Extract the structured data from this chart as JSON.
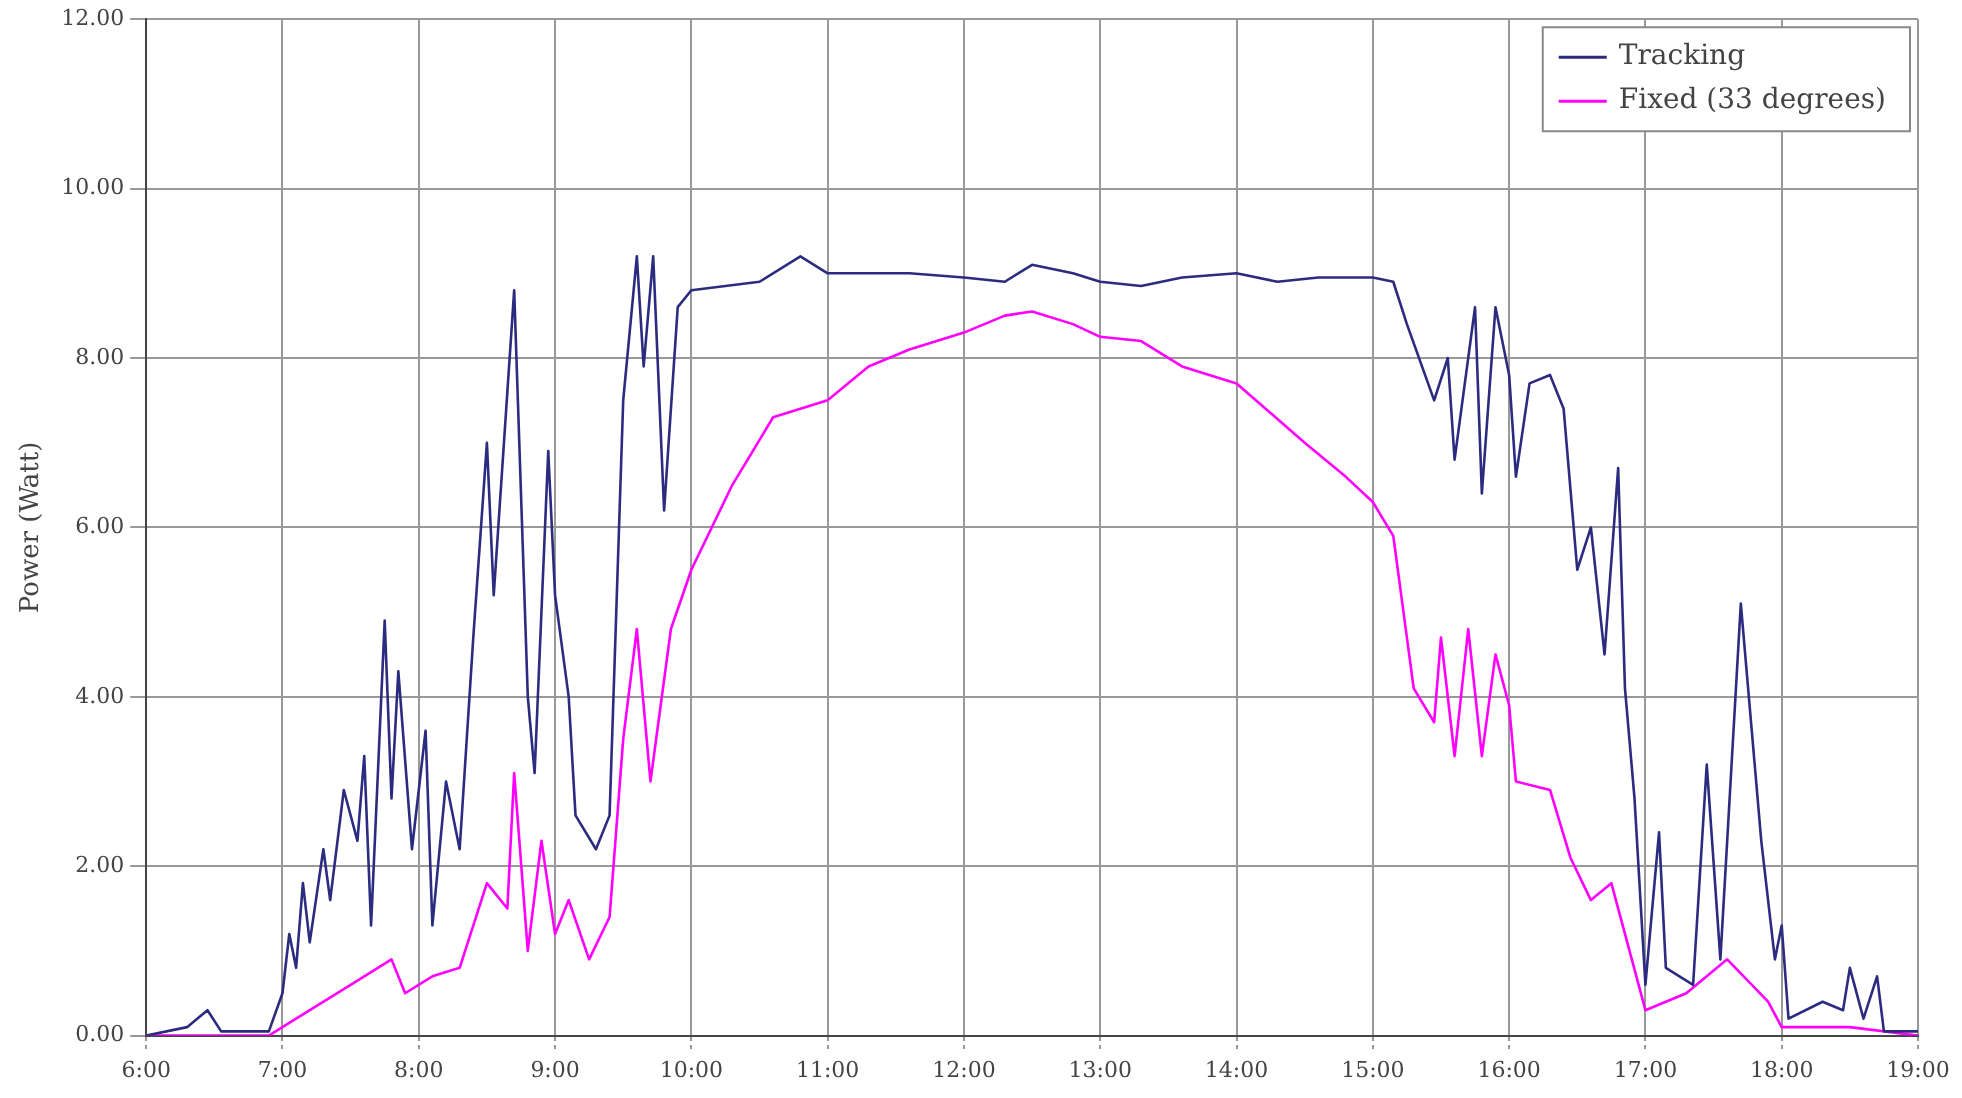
{
  "chart_data": {
    "type": "line",
    "ylabel": "Power (Watt)",
    "legend": "top right",
    "grid": true,
    "marker": "none",
    "line_style": "solid",
    "xlim": [
      6,
      19
    ],
    "xticks": [
      {
        "value": 6,
        "label": "6:00"
      },
      {
        "value": 7,
        "label": "7:00"
      },
      {
        "value": 8,
        "label": "8:00"
      },
      {
        "value": 9,
        "label": "9:00"
      },
      {
        "value": 10,
        "label": "10:00"
      },
      {
        "value": 11,
        "label": "11:00"
      },
      {
        "value": 12,
        "label": "12:00"
      },
      {
        "value": 13,
        "label": "13:00"
      },
      {
        "value": 14,
        "label": "14:00"
      },
      {
        "value": 15,
        "label": "15:00"
      },
      {
        "value": 16,
        "label": "16:00"
      },
      {
        "value": 17,
        "label": "17:00"
      },
      {
        "value": 18,
        "label": "18:00"
      },
      {
        "value": 19,
        "label": "19:00"
      }
    ],
    "ylim": [
      0,
      12
    ],
    "yticks": [
      {
        "value": 0,
        "label": "0.00"
      },
      {
        "value": 2,
        "label": "2.00"
      },
      {
        "value": 4,
        "label": "4.00"
      },
      {
        "value": 6,
        "label": "6.00"
      },
      {
        "value": 8,
        "label": "8.00"
      },
      {
        "value": 10,
        "label": "10.00"
      },
      {
        "value": 12,
        "label": "12.00"
      }
    ],
    "series": [
      {
        "name": "Tracking",
        "color": "#2b2b80",
        "x": [
          6.0,
          6.3,
          6.45,
          6.55,
          6.9,
          7.0,
          7.05,
          7.1,
          7.15,
          7.2,
          7.3,
          7.35,
          7.45,
          7.55,
          7.6,
          7.65,
          7.75,
          7.8,
          7.85,
          7.95,
          8.05,
          8.1,
          8.2,
          8.3,
          8.4,
          8.5,
          8.55,
          8.7,
          8.75,
          8.8,
          8.85,
          8.95,
          9.0,
          9.1,
          9.15,
          9.3,
          9.4,
          9.5,
          9.6,
          9.65,
          9.72,
          9.8,
          9.9,
          10.0,
          10.5,
          10.8,
          11.0,
          11.3,
          11.6,
          12.0,
          12.3,
          12.5,
          12.8,
          13.0,
          13.3,
          13.6,
          14.0,
          14.3,
          14.6,
          15.0,
          15.15,
          15.25,
          15.45,
          15.55,
          15.6,
          15.75,
          15.8,
          15.9,
          16.0,
          16.05,
          16.15,
          16.3,
          16.4,
          16.5,
          16.6,
          16.7,
          16.8,
          16.85,
          16.92,
          17.0,
          17.1,
          17.15,
          17.35,
          17.45,
          17.55,
          17.7,
          17.85,
          17.95,
          18.0,
          18.05,
          18.3,
          18.45,
          18.5,
          18.6,
          18.7,
          18.75,
          19.0
        ],
        "values": [
          0,
          0.1,
          0.3,
          0.05,
          0.05,
          0.5,
          1.2,
          0.8,
          1.8,
          1.1,
          2.2,
          1.6,
          2.9,
          2.3,
          3.3,
          1.3,
          4.9,
          2.8,
          4.3,
          2.2,
          3.6,
          1.3,
          3.0,
          2.2,
          4.7,
          7.0,
          5.2,
          8.8,
          6.4,
          4.0,
          3.1,
          6.9,
          5.2,
          4.0,
          2.6,
          2.2,
          2.6,
          7.5,
          9.2,
          7.9,
          9.2,
          6.2,
          8.6,
          8.8,
          8.9,
          9.2,
          9.0,
          9.0,
          9.0,
          8.95,
          8.9,
          9.1,
          9.0,
          8.9,
          8.85,
          8.95,
          9.0,
          8.9,
          8.95,
          8.95,
          8.9,
          8.4,
          7.5,
          8.0,
          6.8,
          8.6,
          6.4,
          8.6,
          7.8,
          6.6,
          7.7,
          7.8,
          7.4,
          5.5,
          6.0,
          4.5,
          6.7,
          4.1,
          2.8,
          0.6,
          2.4,
          0.8,
          0.6,
          3.2,
          0.9,
          5.1,
          2.3,
          0.9,
          1.3,
          0.2,
          0.4,
          0.3,
          0.8,
          0.2,
          0.7,
          0.05,
          0.05
        ]
      },
      {
        "name": "Fixed (33 degrees)",
        "color": "#ff00ff",
        "x": [
          6.0,
          6.9,
          7.1,
          7.5,
          7.8,
          7.9,
          8.1,
          8.3,
          8.5,
          8.65,
          8.7,
          8.8,
          8.9,
          9.0,
          9.1,
          9.25,
          9.4,
          9.5,
          9.6,
          9.7,
          9.85,
          10.0,
          10.3,
          10.6,
          11.0,
          11.3,
          11.6,
          12.0,
          12.3,
          12.5,
          12.8,
          13.0,
          13.3,
          13.6,
          14.0,
          14.5,
          14.8,
          15.0,
          15.15,
          15.3,
          15.45,
          15.5,
          15.6,
          15.7,
          15.8,
          15.9,
          16.0,
          16.05,
          16.3,
          16.45,
          16.6,
          16.75,
          16.85,
          17.0,
          17.3,
          17.6,
          17.9,
          18.0,
          18.5,
          19.0
        ],
        "values": [
          0,
          0,
          0.2,
          0.6,
          0.9,
          0.5,
          0.7,
          0.8,
          1.8,
          1.5,
          3.1,
          1.0,
          2.3,
          1.2,
          1.6,
          0.9,
          1.4,
          3.5,
          4.8,
          3.0,
          4.8,
          5.5,
          6.5,
          7.3,
          7.5,
          7.9,
          8.1,
          8.3,
          8.5,
          8.55,
          8.4,
          8.25,
          8.2,
          7.9,
          7.7,
          7.0,
          6.6,
          6.3,
          5.9,
          4.1,
          3.7,
          4.7,
          3.3,
          4.8,
          3.3,
          4.5,
          3.9,
          3.0,
          2.9,
          2.1,
          1.6,
          1.8,
          1.2,
          0.3,
          0.5,
          0.9,
          0.4,
          0.1,
          0.1,
          0
        ]
      }
    ]
  }
}
